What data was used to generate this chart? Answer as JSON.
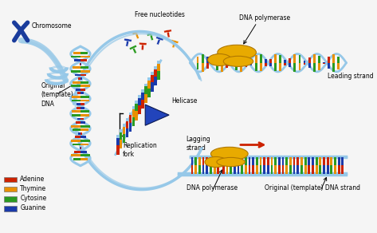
{
  "background_color": "#f5f5f5",
  "legend_items": [
    {
      "label": "Adenine",
      "color": "#cc2200"
    },
    {
      "label": "Thymine",
      "color": "#e89000"
    },
    {
      "label": "Cytosine",
      "color": "#2a9a20"
    },
    {
      "label": "Guanine",
      "color": "#1a3aaa"
    }
  ],
  "labels": {
    "chromosome": "Chromosome",
    "original_dna": "Original\n(template)\nDNA",
    "replication_fork": "Replication\nfork",
    "free_nucleotides": "Free nucleotides",
    "dna_polymerase_top": "DNA polymerase",
    "leading_strand": "Leading strand",
    "helicase": "Helicase",
    "lagging_strand": "Lagging\nstrand",
    "dna_polymerase_bottom": "DNA polymerase",
    "original_template_strand": "Original (template) DNA strand"
  },
  "colors": {
    "adenine": "#cc2200",
    "thymine": "#e89000",
    "cytosine": "#2a9a20",
    "guanine": "#1a3aaa",
    "dna_backbone": "#96c8e8",
    "helicase": "#2244bb",
    "dna_polymerase": "#e8aa00",
    "chromosome": "#1a3c9c",
    "arrow_red": "#cc2200"
  }
}
